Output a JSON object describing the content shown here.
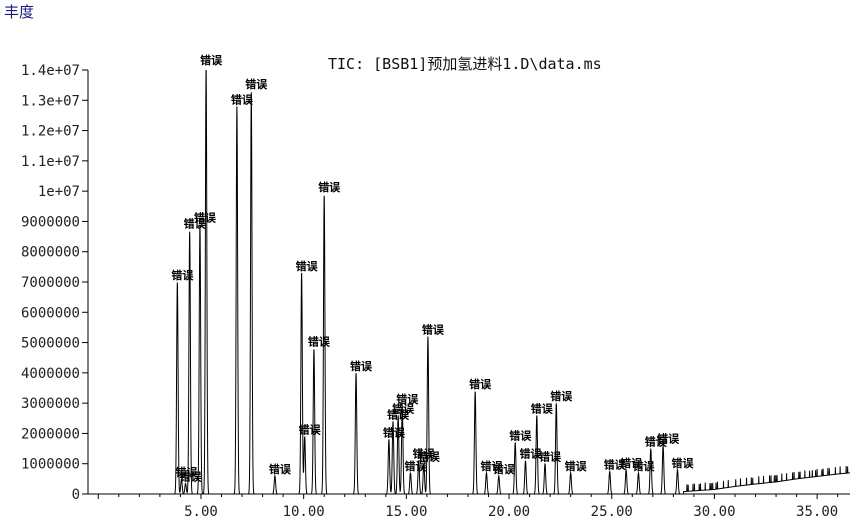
{
  "chart_data": {
    "type": "line",
    "title": "TIC: [BSB1]预加氢进料1.D\\data.ms",
    "ylabel": "丰度",
    "xlabel": "",
    "xlim": [
      -0.5,
      36.6
    ],
    "ylim": [
      0,
      14000000
    ],
    "x_ticks": [
      5,
      10,
      15,
      20,
      25,
      30,
      35
    ],
    "x_tick_labels": [
      "5.00",
      "10.00",
      "15.00",
      "20.00",
      "25.00",
      "30.00",
      "35.00"
    ],
    "y_ticks": [
      0,
      1000000,
      2000000,
      3000000,
      4000000,
      5000000,
      6000000,
      7000000,
      8000000,
      9000000,
      10000000,
      11000000,
      12000000,
      13000000,
      14000000
    ],
    "y_tick_labels": [
      "0",
      "1000000",
      "2000000",
      "3000000",
      "4000000",
      "5000000",
      "6000000",
      "7000000",
      "8000000",
      "9000000",
      "1e+07",
      "1.1e+07",
      "1.2e+07",
      "1.3e+07",
      "1.4e+07"
    ],
    "peak_label_text": "错误",
    "peaks": [
      {
        "x": 3.85,
        "y": 7000000
      },
      {
        "x": 4.05,
        "y": 500000
      },
      {
        "x": 4.25,
        "y": 350000
      },
      {
        "x": 4.45,
        "y": 8700000
      },
      {
        "x": 4.95,
        "y": 8900000
      },
      {
        "x": 5.25,
        "y": 14100000
      },
      {
        "x": 6.75,
        "y": 12800000
      },
      {
        "x": 7.45,
        "y": 13300000
      },
      {
        "x": 8.6,
        "y": 600000
      },
      {
        "x": 9.9,
        "y": 7300000
      },
      {
        "x": 10.05,
        "y": 1900000
      },
      {
        "x": 10.5,
        "y": 4800000
      },
      {
        "x": 11.0,
        "y": 9900000
      },
      {
        "x": 12.55,
        "y": 4000000
      },
      {
        "x": 14.15,
        "y": 1800000
      },
      {
        "x": 14.35,
        "y": 2400000
      },
      {
        "x": 14.6,
        "y": 2600000
      },
      {
        "x": 14.8,
        "y": 2900000
      },
      {
        "x": 15.2,
        "y": 700000
      },
      {
        "x": 15.6,
        "y": 1100000
      },
      {
        "x": 15.85,
        "y": 1000000
      },
      {
        "x": 16.05,
        "y": 5200000
      },
      {
        "x": 18.35,
        "y": 3400000
      },
      {
        "x": 18.9,
        "y": 700000
      },
      {
        "x": 19.5,
        "y": 600000
      },
      {
        "x": 20.3,
        "y": 1700000
      },
      {
        "x": 20.8,
        "y": 1100000
      },
      {
        "x": 21.35,
        "y": 2600000
      },
      {
        "x": 21.75,
        "y": 1000000
      },
      {
        "x": 22.3,
        "y": 3000000
      },
      {
        "x": 23.0,
        "y": 700000
      },
      {
        "x": 24.9,
        "y": 750000
      },
      {
        "x": 25.7,
        "y": 800000
      },
      {
        "x": 26.3,
        "y": 700000
      },
      {
        "x": 26.9,
        "y": 1500000
      },
      {
        "x": 27.5,
        "y": 1600000
      },
      {
        "x": 28.2,
        "y": 800000
      }
    ],
    "baseline_rise": [
      {
        "x": 28.5,
        "y": 80000
      },
      {
        "x": 30.0,
        "y": 150000
      },
      {
        "x": 31.0,
        "y": 250000
      },
      {
        "x": 32.0,
        "y": 330000
      },
      {
        "x": 33.0,
        "y": 400000
      },
      {
        "x": 34.0,
        "y": 500000
      },
      {
        "x": 35.0,
        "y": 580000
      },
      {
        "x": 36.0,
        "y": 660000
      },
      {
        "x": 36.6,
        "y": 700000
      }
    ]
  }
}
